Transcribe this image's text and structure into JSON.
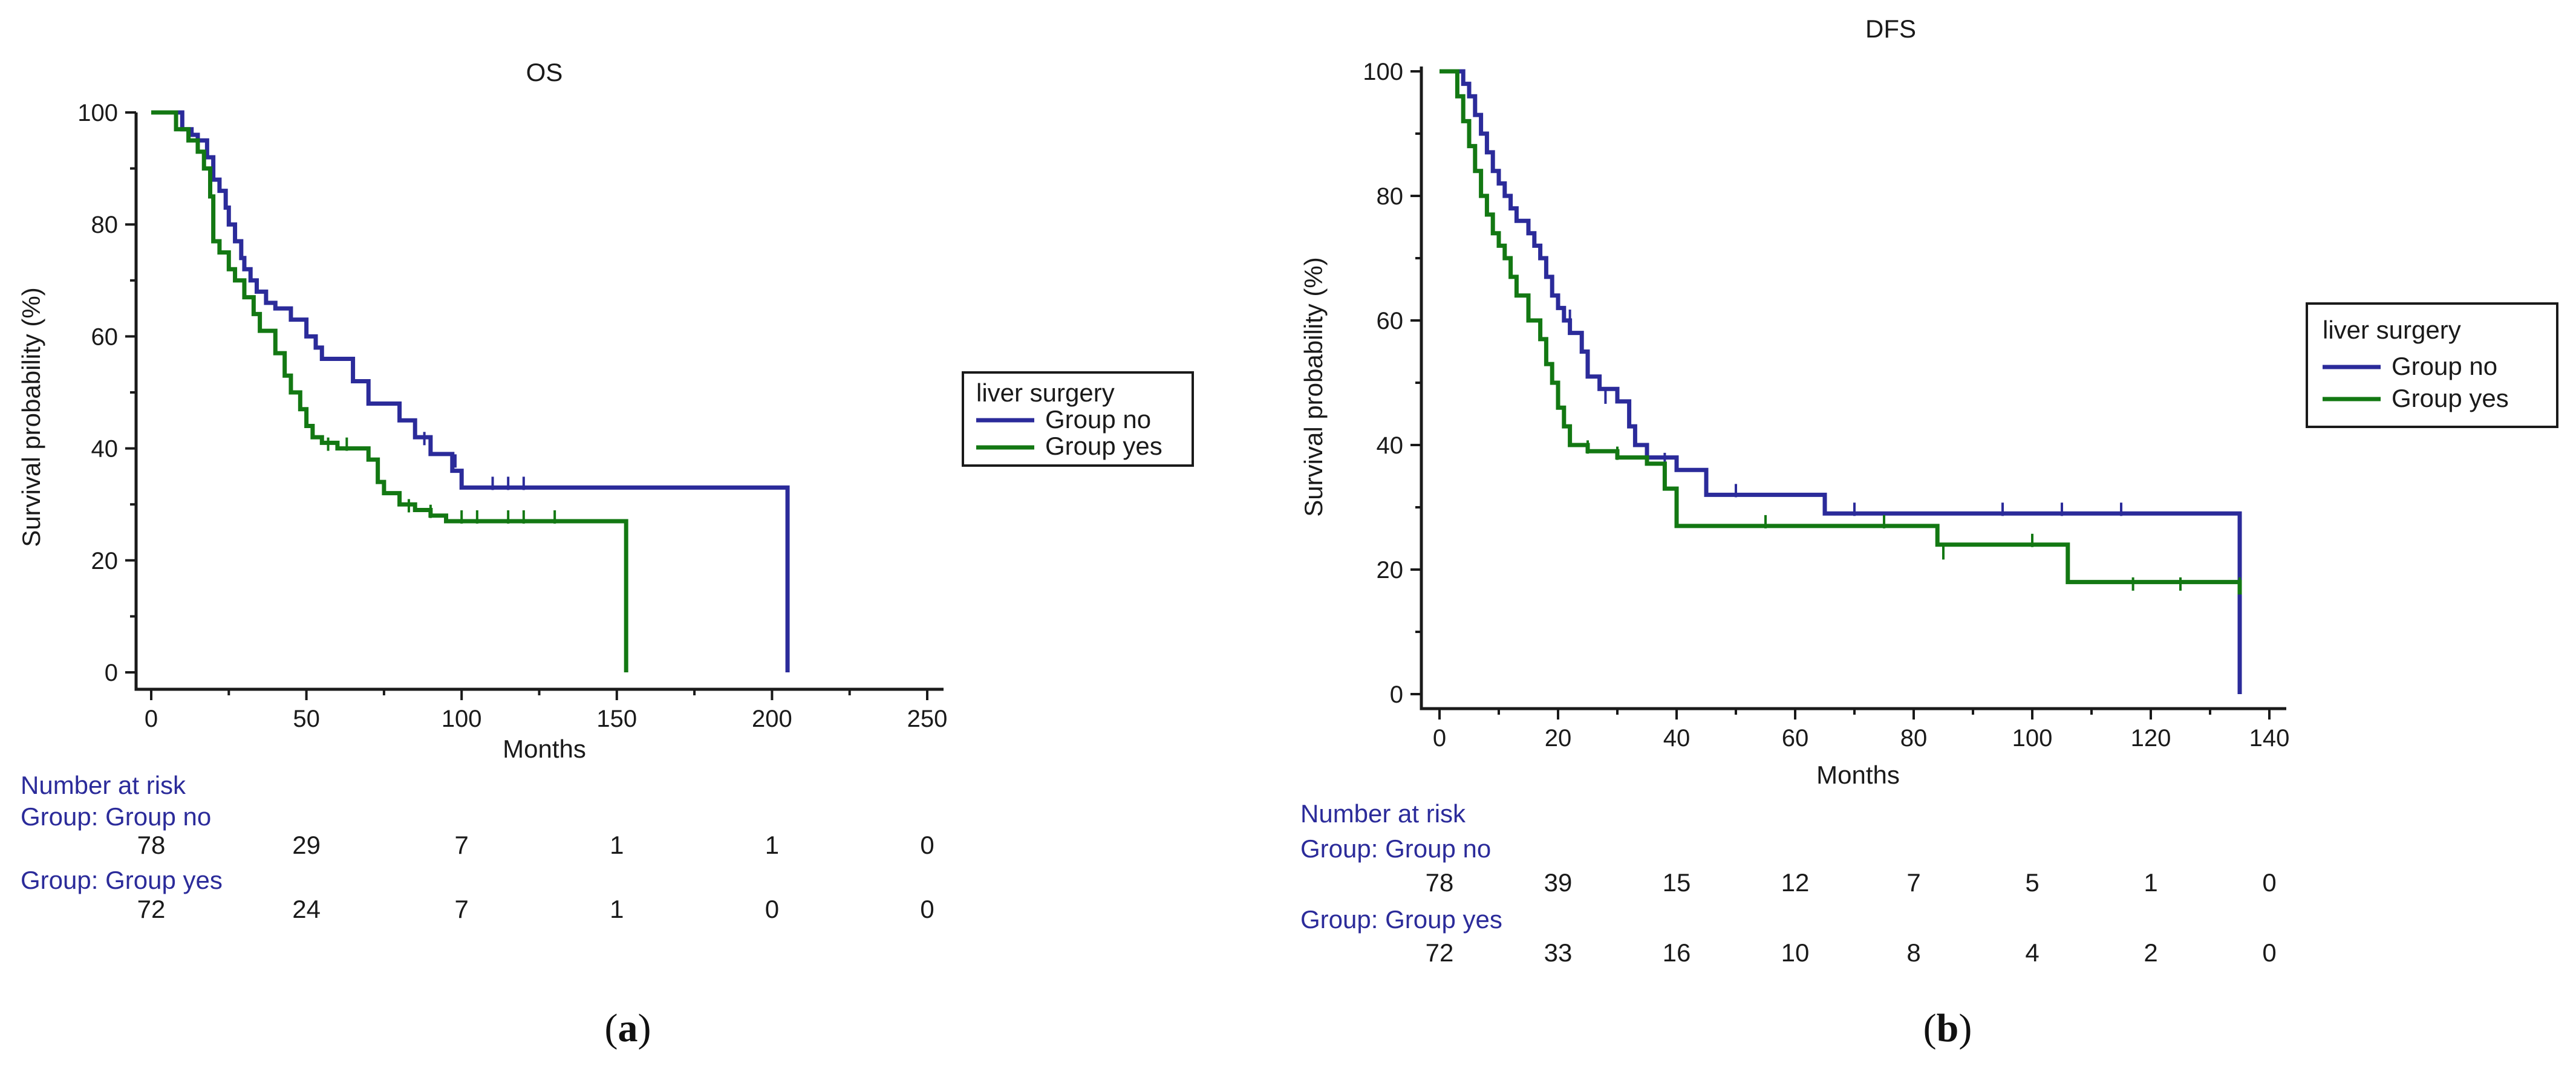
{
  "colors": {
    "group_no": "#2b2b9a",
    "group_yes": "#137813",
    "axis": "#1a1a1a"
  },
  "chart_data": [
    {
      "panel": "(a)",
      "panel_letter": "a",
      "type": "line",
      "subtype": "kaplan-meier",
      "title": "OS",
      "xlabel": "Months",
      "ylabel": "Survival probability (%)",
      "xlim": [
        0,
        250
      ],
      "ylim": [
        0,
        100
      ],
      "xticks": [
        0,
        50,
        100,
        150,
        200,
        250
      ],
      "yticks": [
        0,
        20,
        40,
        60,
        80,
        100
      ],
      "legend": {
        "title": "liver surgery",
        "entries": [
          "Group no",
          "Group yes"
        ],
        "position": "right"
      },
      "series": [
        {
          "name": "Group no",
          "color": "#2b2b9a",
          "x": [
            0,
            10,
            13,
            15,
            18,
            20,
            22,
            24,
            25,
            27,
            29,
            30,
            32,
            34,
            37,
            40,
            45,
            50,
            53,
            55,
            65,
            70,
            80,
            85,
            90,
            97,
            100,
            205,
            205
          ],
          "y": [
            100,
            97,
            96,
            95,
            92,
            88,
            86,
            83,
            80,
            77,
            74,
            72,
            70,
            68,
            66,
            65,
            63,
            60,
            58,
            56,
            52,
            48,
            45,
            42,
            39,
            36,
            33,
            33,
            0
          ],
          "censored_x": [
            88,
            98,
            110,
            115,
            120
          ],
          "censored_y": [
            41,
            37,
            33,
            33,
            33
          ]
        },
        {
          "name": "Group yes",
          "color": "#137813",
          "x": [
            0,
            8,
            12,
            15,
            17,
            19,
            20,
            22,
            25,
            27,
            30,
            33,
            35,
            40,
            43,
            45,
            48,
            50,
            52,
            55,
            60,
            70,
            73,
            75,
            80,
            85,
            90,
            95,
            153,
            153
          ],
          "y": [
            100,
            97,
            95,
            93,
            90,
            85,
            77,
            75,
            72,
            70,
            67,
            64,
            61,
            57,
            53,
            50,
            47,
            44,
            42,
            41,
            40,
            38,
            34,
            32,
            30,
            29,
            28,
            27,
            27,
            0
          ],
          "censored_x": [
            57,
            63,
            83,
            90,
            100,
            105,
            115,
            120,
            130
          ],
          "censored_y": [
            40,
            40,
            29,
            28,
            27,
            27,
            27,
            27,
            27
          ]
        }
      ],
      "risk_table": {
        "heading": "Number at risk",
        "rows": [
          {
            "label": "Group: Group no",
            "values": [
              "78",
              "29",
              "7",
              "1",
              "1",
              "0"
            ]
          },
          {
            "label": "Group: Group yes",
            "values": [
              "72",
              "24",
              "7",
              "1",
              "0",
              "0"
            ]
          }
        ]
      }
    },
    {
      "panel": "(b)",
      "panel_letter": "b",
      "type": "line",
      "subtype": "kaplan-meier",
      "title": "DFS",
      "xlabel": "Months",
      "ylabel": "Survival probability (%)",
      "xlim": [
        0,
        140
      ],
      "ylim": [
        0,
        100
      ],
      "xticks": [
        0,
        20,
        40,
        60,
        80,
        100,
        120,
        140
      ],
      "yticks": [
        0,
        20,
        40,
        60,
        80,
        100
      ],
      "legend": {
        "title": "liver surgery",
        "entries": [
          "Group no",
          "Group yes"
        ],
        "position": "right"
      },
      "series": [
        {
          "name": "Group no",
          "color": "#2b2b9a",
          "x": [
            0,
            4,
            5,
            6,
            7,
            8,
            9,
            10,
            11,
            12,
            13,
            15,
            16,
            17,
            18,
            19,
            20,
            21,
            22,
            24,
            25,
            27,
            30,
            32,
            33,
            35,
            40,
            45,
            65,
            135,
            135
          ],
          "y": [
            100,
            98,
            96,
            93,
            90,
            87,
            84,
            82,
            80,
            78,
            76,
            74,
            72,
            70,
            67,
            64,
            62,
            60,
            58,
            55,
            51,
            49,
            47,
            43,
            40,
            38,
            36,
            32,
            29,
            29,
            0
          ],
          "censored_x": [
            22,
            28,
            38,
            50,
            70,
            95,
            105,
            115
          ],
          "censored_y": [
            60,
            47,
            37,
            32,
            29,
            29,
            29,
            29
          ]
        },
        {
          "name": "Group yes",
          "color": "#137813",
          "x": [
            0,
            3,
            4,
            5,
            6,
            7,
            8,
            9,
            10,
            11,
            12,
            13,
            15,
            17,
            18,
            19,
            20,
            21,
            22,
            25,
            30,
            35,
            38,
            40,
            84,
            106,
            135
          ],
          "y": [
            100,
            96,
            92,
            88,
            84,
            80,
            77,
            74,
            72,
            70,
            67,
            64,
            60,
            57,
            53,
            50,
            46,
            43,
            40,
            39,
            38,
            37,
            33,
            27,
            24,
            18,
            16
          ],
          "censored_x": [
            25,
            30,
            55,
            75,
            85,
            100,
            117,
            125,
            135
          ],
          "censored_y": [
            39,
            38,
            27,
            27,
            22,
            24,
            17,
            17,
            17
          ]
        }
      ],
      "risk_table": {
        "heading": "Number at risk",
        "rows": [
          {
            "label": "Group: Group no",
            "values": [
              "78",
              "39",
              "15",
              "12",
              "7",
              "5",
              "1",
              "0"
            ]
          },
          {
            "label": "Group: Group yes",
            "values": [
              "72",
              "33",
              "16",
              "10",
              "8",
              "4",
              "2",
              "0"
            ]
          }
        ]
      }
    }
  ]
}
